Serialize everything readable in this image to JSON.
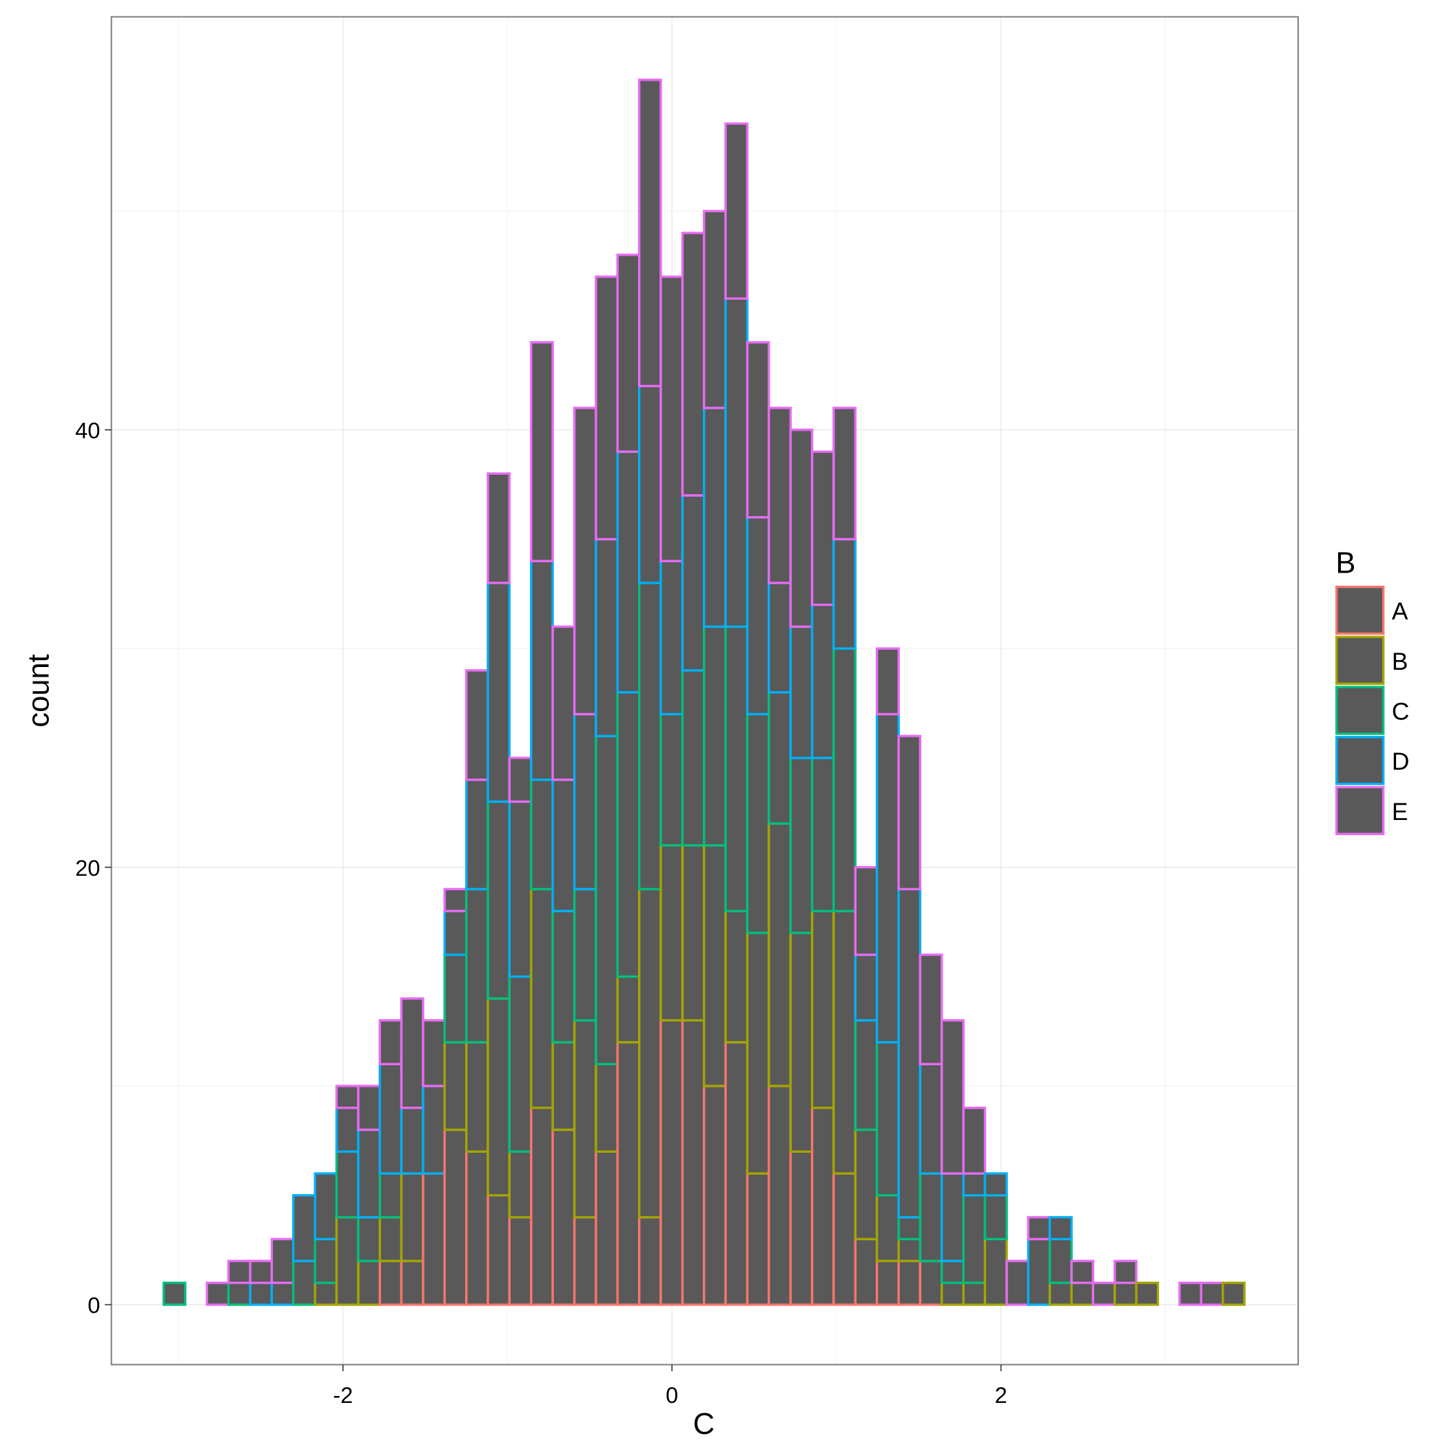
{
  "chart_data": {
    "type": "histogram",
    "x_label": "C",
    "y_label": "count",
    "legend_title": "B",
    "bar_fill": "#595959",
    "bins": [
      -3.09,
      -2.959,
      -2.827,
      -2.696,
      -2.564,
      -2.433,
      -2.302,
      -2.17,
      -2.039,
      -1.907,
      -1.776,
      -1.645,
      -1.513,
      -1.382,
      -1.25,
      -1.119,
      -0.988,
      -0.856,
      -0.725,
      -0.593,
      -0.462,
      -0.331,
      -0.199,
      -0.068,
      0.064,
      0.195,
      0.326,
      0.458,
      0.589,
      0.721,
      0.852,
      0.983,
      1.115,
      1.246,
      1.378,
      1.509,
      1.64,
      1.772,
      1.903,
      2.035,
      2.166,
      2.297,
      2.429,
      2.56,
      2.692,
      2.823,
      2.954,
      3.086,
      3.217,
      3.349,
      3.48
    ],
    "series": [
      {
        "name": "A",
        "color": "#F8766D",
        "values": [
          0,
          0,
          0,
          0,
          0,
          0,
          0,
          0,
          0,
          0,
          2,
          2,
          6,
          8,
          7,
          5,
          4,
          9,
          8,
          4,
          7,
          12,
          4,
          13,
          13,
          10,
          12,
          6,
          10,
          7,
          9,
          6,
          3,
          2,
          2,
          2,
          0,
          0,
          0,
          0,
          0,
          0,
          0,
          0,
          0,
          0,
          0,
          0,
          0,
          0
        ]
      },
      {
        "name": "B",
        "color": "#A3A500",
        "values": [
          0,
          0,
          0,
          0,
          0,
          0,
          0,
          1,
          4,
          2,
          2,
          4,
          0,
          4,
          5,
          9,
          3,
          10,
          4,
          9,
          4,
          3,
          15,
          8,
          8,
          11,
          6,
          11,
          12,
          10,
          9,
          12,
          5,
          3,
          1,
          0,
          1,
          1,
          3,
          0,
          0,
          1,
          1,
          0,
          1,
          1,
          0,
          0,
          0,
          1
        ]
      },
      {
        "name": "C",
        "color": "#00BF7D",
        "values": [
          1,
          0,
          0,
          1,
          0,
          0,
          2,
          2,
          3,
          2,
          2,
          0,
          0,
          4,
          7,
          9,
          8,
          5,
          6,
          6,
          15,
          13,
          14,
          6,
          8,
          10,
          13,
          10,
          6,
          8,
          7,
          12,
          5,
          7,
          1,
          4,
          1,
          4,
          2,
          0,
          0,
          2,
          0,
          0,
          0,
          0,
          0,
          0,
          0,
          0
        ]
      },
      {
        "name": "D",
        "color": "#00B0F6",
        "values": [
          0,
          0,
          0,
          0,
          1,
          1,
          3,
          3,
          2,
          4,
          5,
          3,
          4,
          2,
          5,
          10,
          8,
          10,
          6,
          8,
          9,
          11,
          9,
          7,
          8,
          10,
          15,
          9,
          5,
          6,
          7,
          5,
          3,
          15,
          15,
          5,
          4,
          1,
          1,
          0,
          3,
          1,
          0,
          0,
          0,
          0,
          0,
          0,
          0,
          0
        ]
      },
      {
        "name": "E",
        "color": "#E76BF3",
        "values": [
          0,
          0,
          1,
          1,
          1,
          2,
          0,
          0,
          1,
          2,
          2,
          5,
          3,
          1,
          5,
          5,
          2,
          10,
          7,
          14,
          12,
          9,
          14,
          13,
          12,
          9,
          8,
          8,
          8,
          9,
          7,
          6,
          4,
          3,
          7,
          5,
          7,
          3,
          0,
          2,
          1,
          0,
          1,
          1,
          1,
          0,
          0,
          1,
          1,
          0
        ]
      }
    ],
    "xlim": [
      -3.408,
      3.807
    ],
    "xticks": [
      -2,
      0,
      2
    ],
    "x_minor_ticks": [
      -3,
      -1,
      1,
      3
    ],
    "ylim": [
      -2.74,
      58.88
    ],
    "yticks": [
      0,
      20,
      40
    ],
    "y_minor_ticks": [
      10,
      30,
      50
    ],
    "grid": true,
    "stacked": true,
    "legend_position": "right"
  }
}
